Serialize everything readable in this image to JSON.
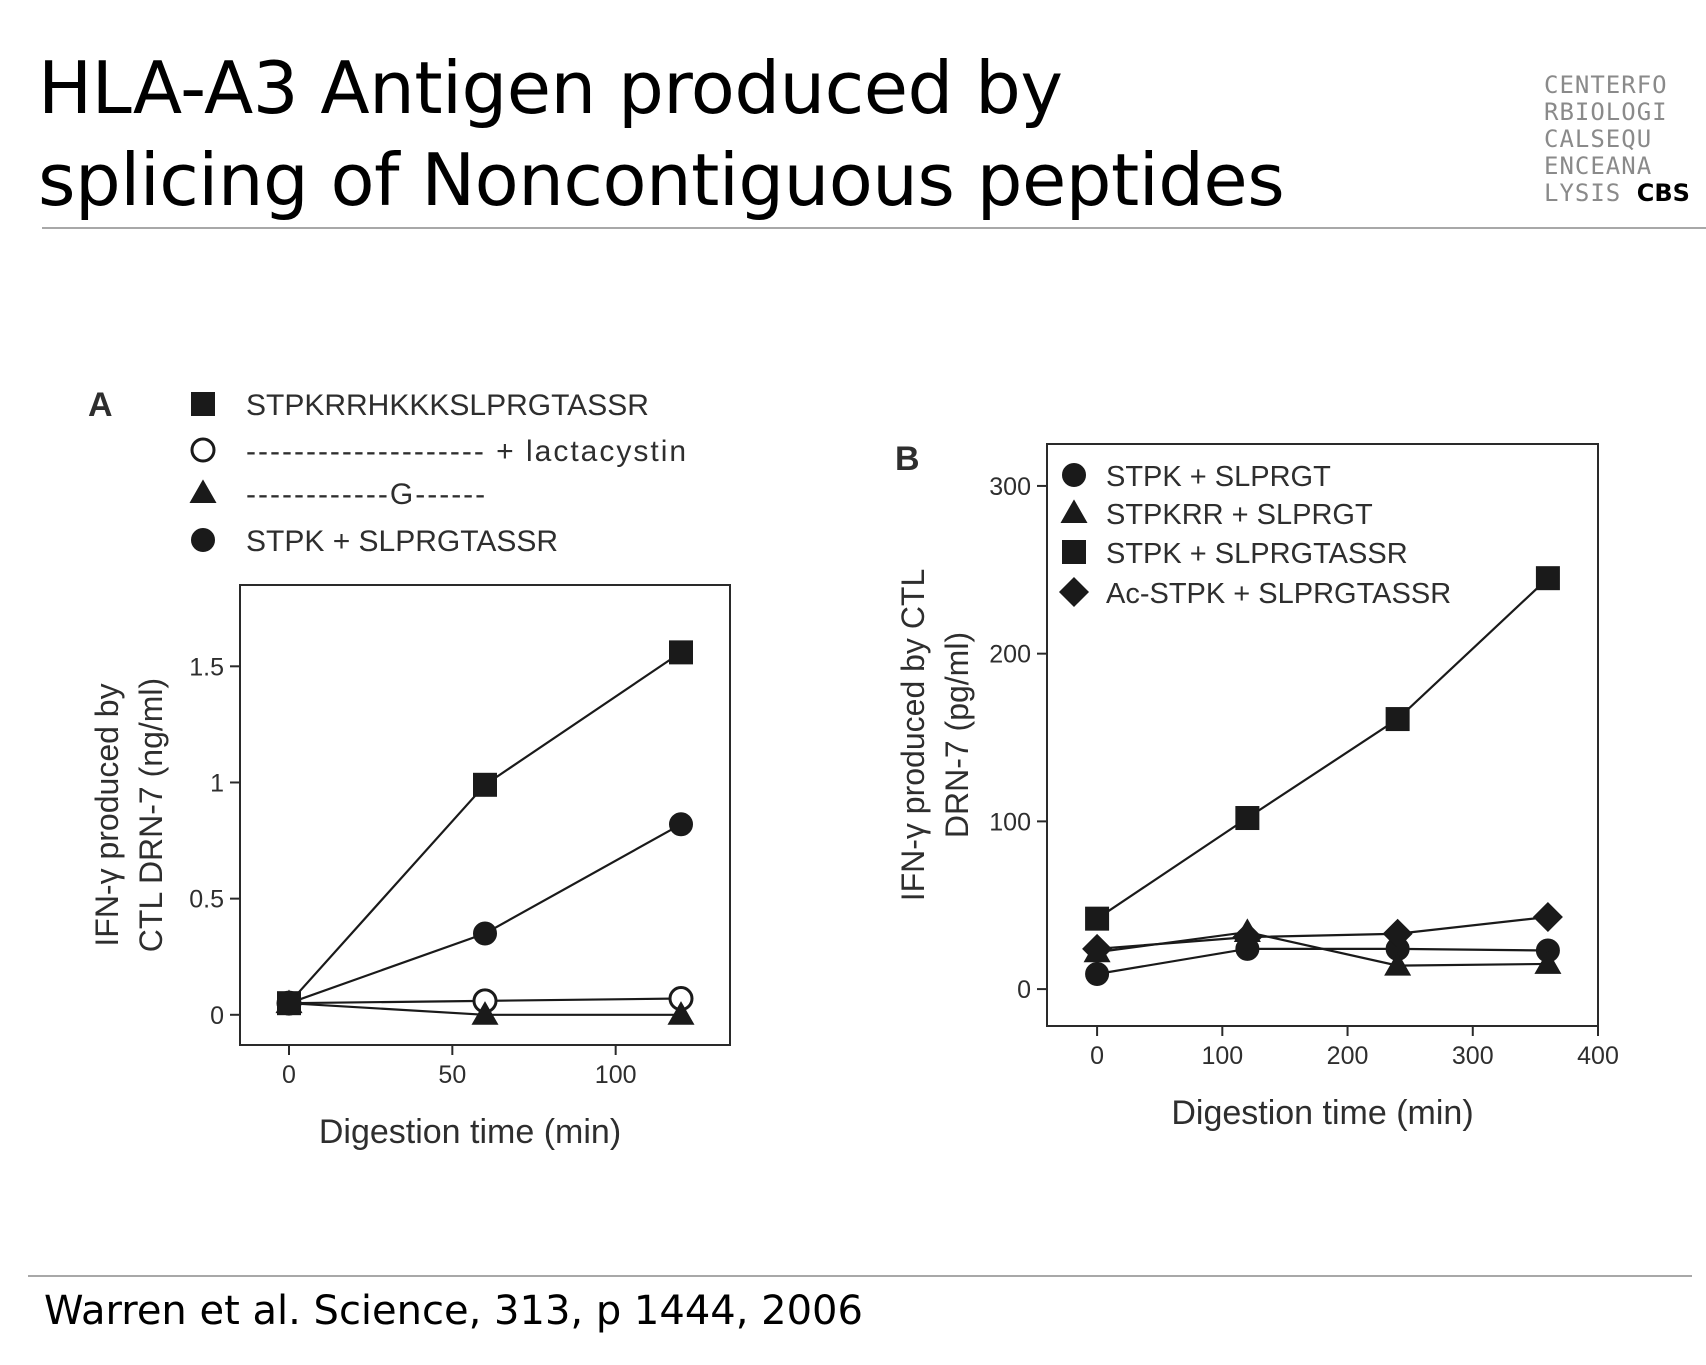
{
  "slide": {
    "title_line1": "HLA-A3 Antigen produced by",
    "title_line2": "splicing of Noncontiguous peptides",
    "logo": {
      "lines": [
        "CENTERFO",
        "RBIOLOGI",
        "CALSEQU",
        "ENCEANA",
        "LYSIS"
      ],
      "tag": "CBS"
    },
    "citation": "Warren et al. Science, 313, p 1444, 2006"
  },
  "chart_data": [
    {
      "type": "line",
      "panel_label": "A",
      "xlabel": "Digestion time (min)",
      "ylabel_line1": "IFN-γ produced by",
      "ylabel_line2": "CTL DRN-7 (ng/ml)",
      "xlim": [
        -15,
        135
      ],
      "ylim": [
        -0.13,
        1.85
      ],
      "xticks": [
        0,
        50,
        100
      ],
      "yticks": [
        0,
        0.5,
        1,
        1.5
      ],
      "ytick_labels": [
        "0",
        "0.5",
        "1",
        "1.5"
      ],
      "grid": false,
      "legend_position": "above plot",
      "series": [
        {
          "name": "STPKRRHKKKSLPRGTASSR",
          "marker": "square",
          "fill": "filled",
          "x": [
            0,
            60,
            120
          ],
          "y": [
            0.05,
            0.99,
            1.56
          ]
        },
        {
          "name": "-------------------- + lactacystin",
          "marker": "circle",
          "fill": "open",
          "x": [
            0,
            60,
            120
          ],
          "y": [
            0.05,
            0.06,
            0.07
          ]
        },
        {
          "name": "------------G------",
          "marker": "triangle",
          "fill": "filled",
          "x": [
            0,
            60,
            120
          ],
          "y": [
            0.05,
            0.0,
            0.0
          ]
        },
        {
          "name": "STPK + SLPRGTASSR",
          "marker": "circle",
          "fill": "filled",
          "x": [
            0,
            60,
            120
          ],
          "y": [
            0.05,
            0.35,
            0.82
          ]
        }
      ]
    },
    {
      "type": "line",
      "panel_label": "B",
      "xlabel": "Digestion time (min)",
      "ylabel_line1": "IFN-γ produced by CTL",
      "ylabel_line2": "DRN-7 (pg/ml)",
      "xlim": [
        -40,
        400
      ],
      "ylim": [
        -22,
        325
      ],
      "xticks": [
        0,
        100,
        200,
        300,
        400
      ],
      "yticks": [
        0,
        100,
        200,
        300
      ],
      "grid": false,
      "legend_position": "top-left inside",
      "series": [
        {
          "name": "STPK + SLPRGT",
          "marker": "circle",
          "fill": "filled",
          "x": [
            0,
            120,
            240,
            360
          ],
          "y": [
            9,
            24,
            24,
            23
          ]
        },
        {
          "name": "STPKRR + SLPRGT",
          "marker": "triangle",
          "fill": "filled",
          "x": [
            0,
            120,
            240,
            360
          ],
          "y": [
            22,
            34,
            14,
            15
          ]
        },
        {
          "name": "STPK + SLPRGTASSR",
          "marker": "square",
          "fill": "filled",
          "x": [
            0,
            120,
            240,
            360
          ],
          "y": [
            42,
            102,
            161,
            245
          ]
        },
        {
          "name": "Ac-STPK + SLPRGTASSR",
          "marker": "diamond",
          "fill": "filled",
          "x": [
            0,
            120,
            240,
            360
          ],
          "y": [
            24,
            31,
            33,
            43
          ]
        }
      ]
    }
  ]
}
